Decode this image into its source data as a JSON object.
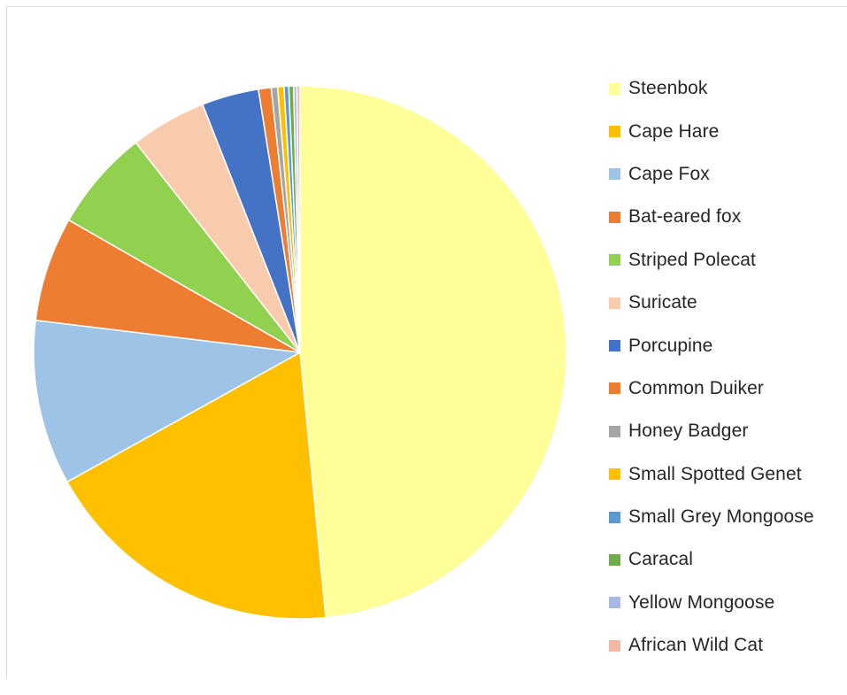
{
  "chart_data": {
    "type": "pie",
    "title": "",
    "legend_position": "right",
    "series": [
      {
        "name": "Steenbok",
        "value": 50.4,
        "color": "#FFFF99"
      },
      {
        "name": "Cape Hare",
        "value": 19.2,
        "color": "#FFC000"
      },
      {
        "name": "Cape Fox",
        "value": 10.4,
        "color": "#9DC3E6"
      },
      {
        "name": "Bat-eared fox",
        "value": 6.6,
        "color": "#ED7D31"
      },
      {
        "name": "Striped Polecat",
        "value": 6.4,
        "color": "#92D050"
      },
      {
        "name": "Suricate",
        "value": 4.8,
        "color": "#F8CBAD"
      },
      {
        "name": "Porcupine",
        "value": 3.6,
        "color": "#4472C4"
      },
      {
        "name": "Common Duiker",
        "value": 0.8,
        "color": "#ED7D31"
      },
      {
        "name": "Honey Badger",
        "value": 0.4,
        "color": "#A5A5A5"
      },
      {
        "name": "Small Spotted Genet",
        "value": 0.4,
        "color": "#FFC000"
      },
      {
        "name": "Small Grey Mongoose",
        "value": 0.3,
        "color": "#5B9BD5"
      },
      {
        "name": "Caracal",
        "value": 0.3,
        "color": "#70AD47"
      },
      {
        "name": "Yellow Mongoose",
        "value": 0.2,
        "color": "#A9B8E0"
      },
      {
        "name": "African Wild Cat",
        "value": 0.2,
        "color": "#F4B8A4"
      }
    ]
  }
}
